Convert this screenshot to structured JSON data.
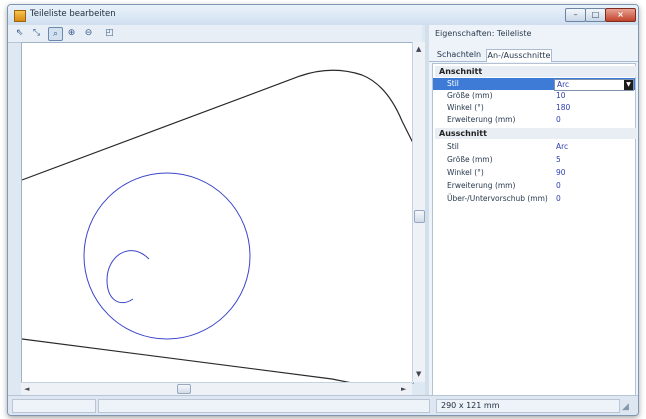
{
  "window": {
    "title": "Teileliste bearbeiten",
    "controls": {
      "minimize": "–",
      "maximize": "□",
      "close": "×"
    }
  },
  "toolbar": {
    "icons": [
      {
        "name": "select-arrow-icon",
        "glyph": "⇖"
      },
      {
        "name": "select-multi-icon",
        "glyph": "⤡"
      },
      {
        "name": "zoom-fit-icon",
        "glyph": "⌕"
      },
      {
        "name": "zoom-in-icon",
        "glyph": "⊕"
      },
      {
        "name": "zoom-out-icon",
        "glyph": "⊖"
      },
      {
        "name": "export-icon",
        "glyph": "◰"
      }
    ]
  },
  "properties": {
    "title": "Eigenschaften: Teileliste",
    "tabs": [
      "Schachteln",
      "An-/Ausschnitte"
    ],
    "active_tab": "An-/Ausschnitte",
    "sections": [
      {
        "heading": "Anschnitt",
        "rows": [
          {
            "name": "Stil",
            "value": "Arc"
          },
          {
            "name": "Größe (mm)",
            "value": "10"
          },
          {
            "name": "Winkel (°)",
            "value": "180"
          },
          {
            "name": "Erweiterung (mm)",
            "value": "0"
          }
        ]
      },
      {
        "heading": "Ausschnitt",
        "rows": [
          {
            "name": "Stil",
            "value": "Arc"
          },
          {
            "name": "Größe (mm)",
            "value": "5"
          },
          {
            "name": "Winkel (°)",
            "value": "90"
          },
          {
            "name": "Erweiterung (mm)",
            "value": "0"
          },
          {
            "name": "Über-/Untervorschub (mm)",
            "value": "0"
          }
        ]
      }
    ]
  },
  "status": {
    "size": "290 x 121 mm"
  },
  "colors": {
    "part_outline": "#2a2a2a",
    "cut_path": "#3b45c8",
    "selection": "#3d7bd6"
  }
}
